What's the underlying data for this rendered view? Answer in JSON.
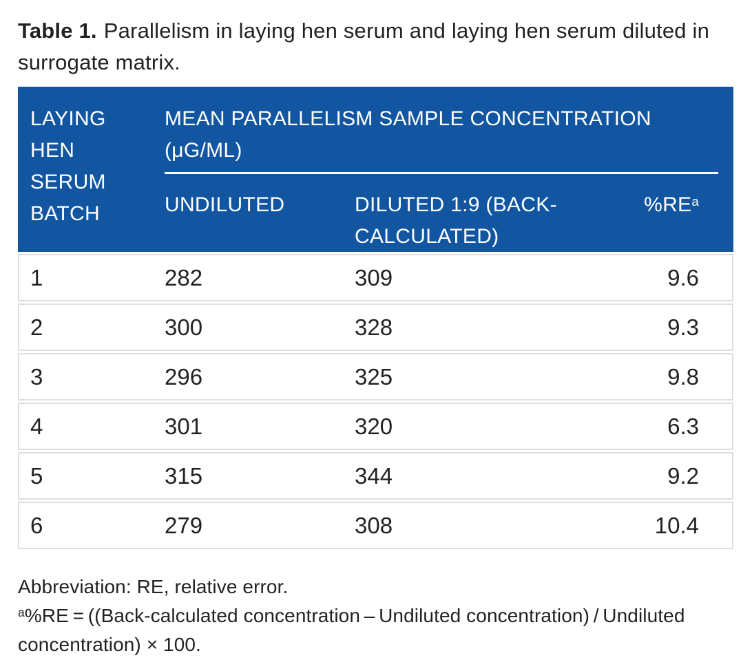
{
  "colors": {
    "header_blue": "#1256A2",
    "row_border": "#dedede",
    "header_text": "#ffffff",
    "body_text": "#222222"
  },
  "caption": {
    "label": "Table 1.",
    "text": "Parallelism in laying hen serum and laying hen serum diluted in surrogate matrix."
  },
  "table": {
    "row_header": "LAYING HEN SERUM BATCH",
    "span_header": "MEAN PARALLELISM SAMPLE CONCENTRATION (μG/ML)",
    "columns": {
      "undiluted": "UNDILUTED",
      "diluted": "DILUTED 1:9 (BACK-CALCULATED)",
      "re": "%RE",
      "re_sup": "a"
    },
    "rows": [
      {
        "batch": "1",
        "undiluted": "282",
        "diluted": "309",
        "re": "9.6"
      },
      {
        "batch": "2",
        "undiluted": "300",
        "diluted": "328",
        "re": "9.3"
      },
      {
        "batch": "3",
        "undiluted": "296",
        "diluted": "325",
        "re": "9.8"
      },
      {
        "batch": "4",
        "undiluted": "301",
        "diluted": "320",
        "re": "6.3"
      },
      {
        "batch": "5",
        "undiluted": "315",
        "diluted": "344",
        "re": "9.2"
      },
      {
        "batch": "6",
        "undiluted": "279",
        "diluted": "308",
        "re": "10.4"
      }
    ]
  },
  "footnotes": {
    "abbreviation": "Abbreviation: RE, relative error.",
    "formula_sup": "a",
    "formula": "%RE = ((Back-calculated concentration – Undiluted concentration) / Undiluted concentration) × 100."
  }
}
